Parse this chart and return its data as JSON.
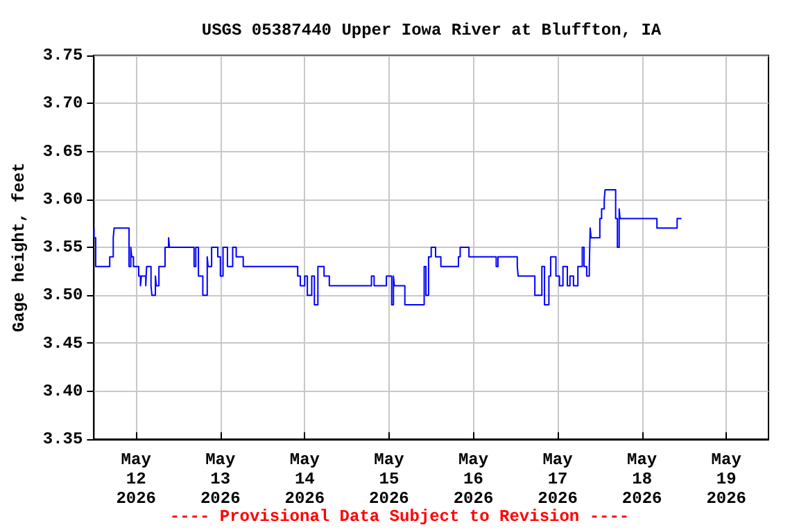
{
  "chart_data": {
    "type": "step",
    "title": "USGS 05387440 Upper Iowa River at Bluffton, IA",
    "ylabel": "Gage height, feet",
    "annotations": [
      "---- Provisional Data Subject to Revision ----"
    ],
    "x": [
      "2026-05-11T12:00",
      "2026-05-11T12:30",
      "2026-05-11T16:30",
      "2026-05-11T17:30",
      "2026-05-11T17:45",
      "2026-05-11T20:30",
      "2026-05-11T22:00",
      "2026-05-11T22:30",
      "2026-05-11T22:45",
      "2026-05-11T23:15",
      "2026-05-11T23:30",
      "2026-05-12T00:45",
      "2026-05-12T01:15",
      "2026-05-12T01:30",
      "2026-05-12T02:45",
      "2026-05-12T03:00",
      "2026-05-12T04:15",
      "2026-05-12T04:30",
      "2026-05-12T05:30",
      "2026-05-12T05:45",
      "2026-05-12T06:30",
      "2026-05-12T08:15",
      "2026-05-12T09:15",
      "2026-05-12T09:30",
      "2026-05-12T10:00",
      "2026-05-12T16:30",
      "2026-05-12T17:00",
      "2026-05-12T17:45",
      "2026-05-12T19:00",
      "2026-05-12T20:15",
      "2026-05-12T20:30",
      "2026-05-12T21:30",
      "2026-05-12T23:15",
      "2026-05-13T00:00",
      "2026-05-13T00:45",
      "2026-05-13T02:00",
      "2026-05-13T03:30",
      "2026-05-13T04:30",
      "2026-05-13T05:45",
      "2026-05-13T06:30",
      "2026-05-13T10:00",
      "2026-05-13T22:00",
      "2026-05-13T22:45",
      "2026-05-14T00:00",
      "2026-05-14T00:45",
      "2026-05-14T02:00",
      "2026-05-14T02:45",
      "2026-05-14T03:45",
      "2026-05-14T05:30",
      "2026-05-14T07:00",
      "2026-05-14T19:00",
      "2026-05-14T19:45",
      "2026-05-14T23:15",
      "2026-05-15T00:45",
      "2026-05-15T01:15",
      "2026-05-15T01:30",
      "2026-05-15T04:30",
      "2026-05-15T10:00",
      "2026-05-15T10:30",
      "2026-05-15T11:15",
      "2026-05-15T12:00",
      "2026-05-15T13:15",
      "2026-05-15T14:00",
      "2026-05-15T14:45",
      "2026-05-15T19:45",
      "2026-05-15T20:15",
      "2026-05-15T22:45",
      "2026-05-16T02:30",
      "2026-05-16T06:30",
      "2026-05-16T07:00",
      "2026-05-16T12:30",
      "2026-05-16T12:45",
      "2026-05-16T17:30",
      "2026-05-16T19:30",
      "2026-05-16T20:15",
      "2026-05-16T21:30",
      "2026-05-16T22:00",
      "2026-05-16T23:30",
      "2026-05-17T00:30",
      "2026-05-17T01:30",
      "2026-05-17T02:45",
      "2026-05-17T03:30",
      "2026-05-17T04:30",
      "2026-05-17T05:45",
      "2026-05-17T06:30",
      "2026-05-17T07:00",
      "2026-05-17T07:30",
      "2026-05-17T08:15",
      "2026-05-17T09:00",
      "2026-05-17T09:15",
      "2026-05-17T09:30",
      "2026-05-17T12:00",
      "2026-05-17T12:30",
      "2026-05-17T13:15",
      "2026-05-17T13:30",
      "2026-05-17T14:45",
      "2026-05-17T16:30",
      "2026-05-17T17:00",
      "2026-05-17T17:30",
      "2026-05-17T17:45",
      "2026-05-17T21:30",
      "2026-05-18T04:15",
      "2026-05-18T04:30",
      "2026-05-18T10:00",
      "2026-05-18T10:30",
      "2026-05-18T11:15"
    ],
    "series": [
      {
        "color": "#0000ff",
        "values": [
          3.57,
          3.56,
          3.53,
          3.54,
          3.56,
          3.57,
          3.57,
          3.53,
          3.55,
          3.54,
          3.53,
          3.53,
          3.52,
          3.51,
          3.52,
          3.51,
          3.53,
          3.51,
          3.5,
          3.52,
          3.51,
          3.53,
          3.55,
          3.56,
          3.55,
          3.55,
          3.53,
          3.55,
          3.52,
          3.5,
          3.54,
          3.53,
          3.55,
          3.54,
          3.52,
          3.55,
          3.53,
          3.55,
          3.54,
          3.54,
          3.53,
          3.53,
          3.52,
          3.51,
          3.52,
          3.5,
          3.52,
          3.49,
          3.53,
          3.52,
          3.51,
          3.52,
          3.51,
          3.52,
          3.49,
          3.52,
          3.51,
          3.49,
          3.53,
          3.5,
          3.54,
          3.55,
          3.54,
          3.54,
          3.53,
          3.54,
          3.55,
          3.54,
          3.54,
          3.53,
          3.54,
          3.53,
          3.52,
          3.5,
          3.53,
          3.49,
          3.52,
          3.54,
          3.52,
          3.51,
          3.53,
          3.51,
          3.52,
          3.51,
          3.53,
          3.53,
          3.55,
          3.53,
          3.52,
          3.53,
          3.57,
          3.56,
          3.58,
          3.59,
          3.6,
          3.61,
          3.61,
          3.58,
          3.55,
          3.59,
          3.58,
          3.58,
          3.57,
          3.57,
          3.58,
          3.58
        ]
      }
    ],
    "xlim": [
      "2026-05-11T12:00",
      "2026-05-19T12:00"
    ],
    "xticks": [
      {
        "value": "2026-05-12",
        "label": "May\n12\n2026"
      },
      {
        "value": "2026-05-13",
        "label": "May\n13\n2026"
      },
      {
        "value": "2026-05-14",
        "label": "May\n14\n2026"
      },
      {
        "value": "2026-05-15",
        "label": "May\n15\n2026"
      },
      {
        "value": "2026-05-16",
        "label": "May\n16\n2026"
      },
      {
        "value": "2026-05-17",
        "label": "May\n17\n2026"
      },
      {
        "value": "2026-05-18",
        "label": "May\n18\n2026"
      },
      {
        "value": "2026-05-19",
        "label": "May\n19\n2026"
      }
    ],
    "ylim": [
      3.35,
      3.75
    ],
    "yticks": [
      3.35,
      {
        "value": 3.4,
        "label": "3.40"
      },
      3.45,
      {
        "value": 3.5,
        "label": "3.50"
      },
      3.55,
      {
        "value": 3.6,
        "label": "3.60"
      },
      3.65,
      {
        "value": 3.7,
        "label": "3.70"
      },
      3.75
    ],
    "grid": true,
    "marker": "none",
    "line_style": "solid"
  }
}
